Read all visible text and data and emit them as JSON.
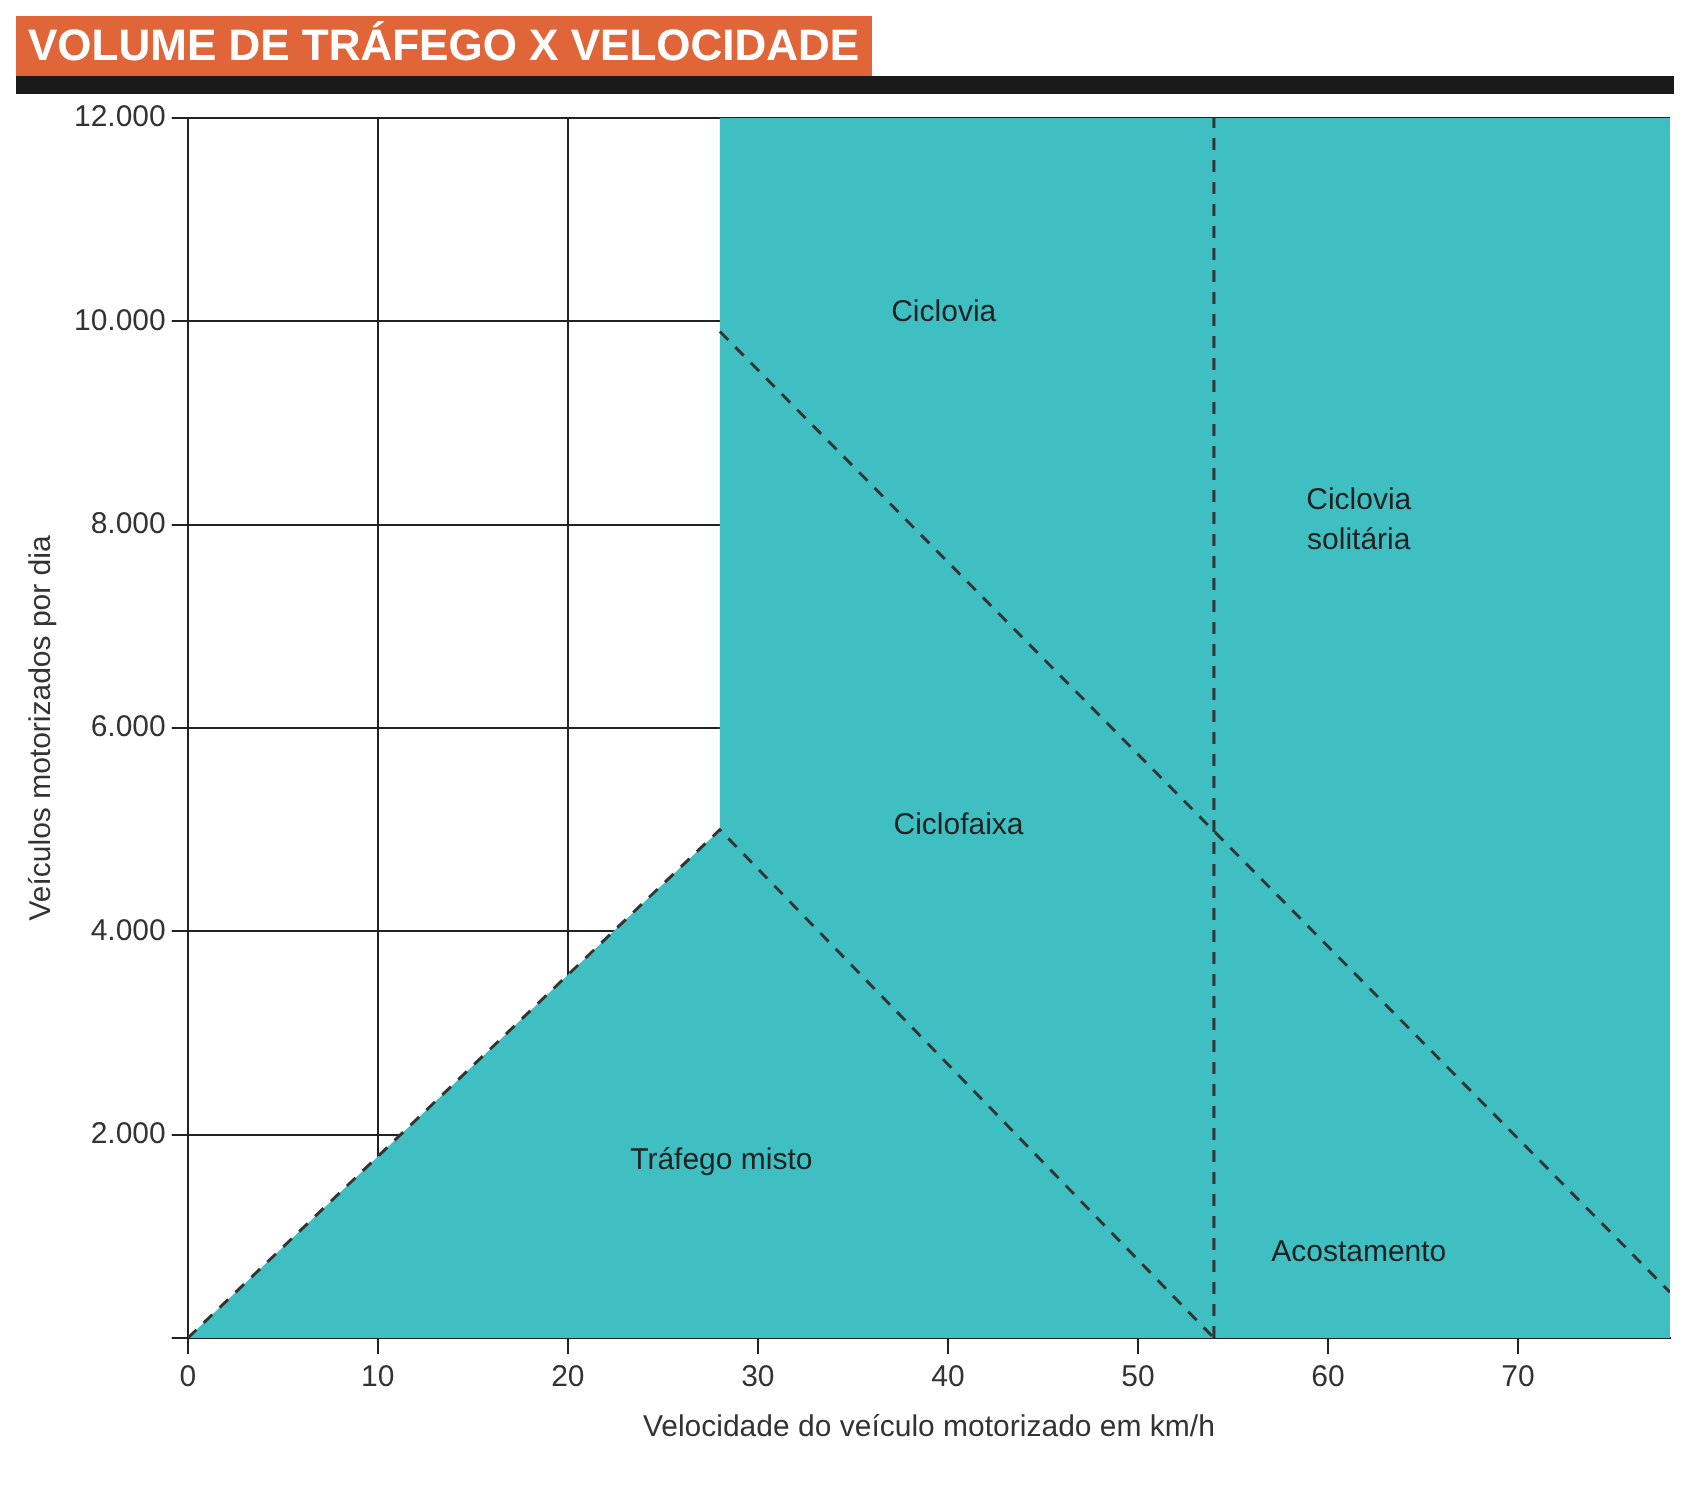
{
  "chart_data": {
    "type": "area",
    "title": "VOLUME DE TRÁFEGO X VELOCIDADE",
    "xlabel": "Velocidade do veículo motorizado em km/h",
    "ylabel": "Veículos motorizados por dia",
    "xlim": [
      0,
      78
    ],
    "ylim": [
      0,
      12000
    ],
    "xticks": [
      0,
      10,
      20,
      30,
      40,
      50,
      60,
      70
    ],
    "yticks": [
      {
        "value": 0,
        "label": null
      },
      {
        "value": 2000,
        "label": "2.000"
      },
      {
        "value": 4000,
        "label": "4.000"
      },
      {
        "value": 6000,
        "label": "6.000"
      },
      {
        "value": 8000,
        "label": "8.000"
      },
      {
        "value": 10000,
        "label": "10.000"
      },
      {
        "value": 12000,
        "label": "12.000"
      }
    ],
    "grid": true,
    "legend": false,
    "marker": "none",
    "series": [
      {
        "color": "#3fbfc2",
        "x": [
          0,
          28,
          28,
          78
        ],
        "values": [
          0,
          5000,
          12000,
          12000
        ]
      },
      {
        "type": "line",
        "color": "#333333",
        "line_style": "dashed",
        "x": [
          0,
          28,
          54
        ],
        "values": [
          0,
          5000,
          0
        ]
      },
      {
        "type": "line",
        "color": "#333333",
        "line_style": "dashed",
        "x": [
          28,
          78
        ],
        "values": [
          9900,
          450
        ]
      },
      {
        "type": "line",
        "color": "#333333",
        "line_style": "dashed",
        "x": [
          54,
          54
        ],
        "values": [
          0,
          12000
        ]
      }
    ],
    "annotations": [
      "Ciclovia",
      "Ciclovia solitária",
      "Ciclofaixa",
      "Tráfego misto",
      "Acostamento"
    ]
  }
}
